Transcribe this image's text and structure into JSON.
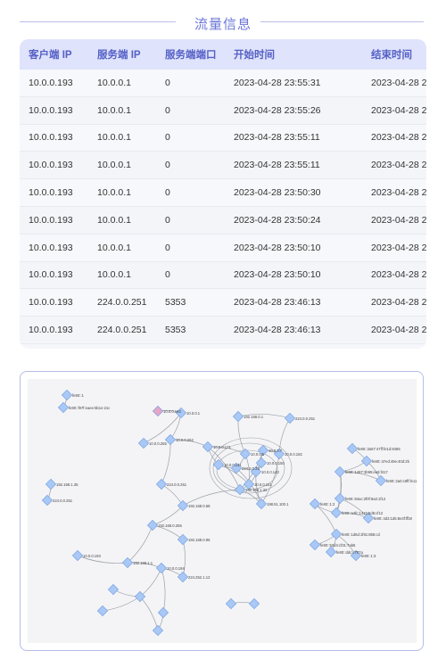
{
  "section": {
    "title": "流量信息"
  },
  "table": {
    "headers": [
      "客户端 IP",
      "服务端 IP",
      "服务端端口",
      "开始时间",
      "结束时间"
    ],
    "rows": [
      [
        "10.0.0.193",
        "10.0.0.1",
        "0",
        "2023-04-28 23:55:31",
        "2023-04-28 2"
      ],
      [
        "10.0.0.193",
        "10.0.0.1",
        "0",
        "2023-04-28 23:55:26",
        "2023-04-28 2"
      ],
      [
        "10.0.0.193",
        "10.0.0.1",
        "0",
        "2023-04-28 23:55:11",
        "2023-04-28 2"
      ],
      [
        "10.0.0.193",
        "10.0.0.1",
        "0",
        "2023-04-28 23:55:11",
        "2023-04-28 2"
      ],
      [
        "10.0.0.193",
        "10.0.0.1",
        "0",
        "2023-04-28 23:50:30",
        "2023-04-28 2"
      ],
      [
        "10.0.0.193",
        "10.0.0.1",
        "0",
        "2023-04-28 23:50:24",
        "2023-04-28 2"
      ],
      [
        "10.0.0.193",
        "10.0.0.1",
        "0",
        "2023-04-28 23:50:10",
        "2023-04-28 2"
      ],
      [
        "10.0.0.193",
        "10.0.0.1",
        "0",
        "2023-04-28 23:50:10",
        "2023-04-28 2"
      ],
      [
        "10.0.0.193",
        "224.0.0.251",
        "5353",
        "2023-04-28 23:46:13",
        "2023-04-28 2"
      ],
      [
        "10.0.0.193",
        "224.0.0.251",
        "5353",
        "2023-04-28 23:46:13",
        "2023-04-28 2"
      ]
    ]
  },
  "graph": {
    "node_color": "#a9c8f5",
    "highlight_node_color": "#e4a6c8",
    "edge_color": "#9aa0a8",
    "label_color": "#444444",
    "labels": [
      {
        "id": "n1",
        "text": "fe80::1"
      },
      {
        "id": "n2",
        "text": "fe80::f97f:eaee:5b1e:21c"
      },
      {
        "id": "n3",
        "text": "10.0.0.193"
      },
      {
        "id": "n4",
        "text": "10.0.0.1"
      },
      {
        "id": "n5",
        "text": "192.168.0.1"
      },
      {
        "id": "n6",
        "text": "224.0.0.251"
      },
      {
        "id": "n7",
        "text": "10.0.0.255"
      },
      {
        "id": "n8",
        "text": "10.0.0.252"
      },
      {
        "id": "n9",
        "text": "10.0.0.171"
      },
      {
        "id": "n10",
        "text": "10.0.0.5"
      },
      {
        "id": "n11",
        "text": "10.0.0.7"
      },
      {
        "id": "n12",
        "text": "10.0.0.182"
      },
      {
        "id": "n13",
        "text": "224.0.0.22"
      },
      {
        "id": "n14",
        "text": "10.0.0.140"
      },
      {
        "id": "n15",
        "text": "10.0.0.150"
      },
      {
        "id": "n16",
        "text": "10.0.0.141"
      },
      {
        "id": "n17",
        "text": "10.0.0.151"
      },
      {
        "id": "n18",
        "text": "224.0.0.251"
      },
      {
        "id": "n19",
        "text": "192.168.1.32"
      },
      {
        "id": "n20",
        "text": "198.51.100.1"
      },
      {
        "id": "n21",
        "text": "192.168.0.68"
      },
      {
        "id": "n22",
        "text": "192.168.1.35"
      },
      {
        "id": "n23",
        "text": "224.0.0.251"
      },
      {
        "id": "n24",
        "text": "fe80::3a57:47ff:fe1d:8485"
      },
      {
        "id": "n25",
        "text": "fe80::47ed:49e:40d:2b"
      },
      {
        "id": "n26",
        "text": "fe80::1487:3b95:ee6:f417"
      },
      {
        "id": "n27",
        "text": "fe80::2a0:c9ff:fe11:a1a2"
      },
      {
        "id": "n28",
        "text": "fe80::84ac:2f0f:9a3:1f12"
      },
      {
        "id": "n29",
        "text": "fe80::a4fc:1415:5d6:cf12"
      },
      {
        "id": "n30",
        "text": "fe80::1:2"
      },
      {
        "id": "n31",
        "text": "fe80::4d3:1d5:8e3f:ffb0"
      },
      {
        "id": "n32",
        "text": "fe80::1d6d:1f91:8b8:cd"
      },
      {
        "id": "n33",
        "text": "fe80::52d4:cf31:7ab6"
      },
      {
        "id": "n34",
        "text": "fe80::ddc:c707a"
      },
      {
        "id": "n35",
        "text": "fe80::1:3"
      },
      {
        "id": "n36",
        "text": "192.168.0.255"
      },
      {
        "id": "n37",
        "text": "192.168.0.95"
      },
      {
        "id": "n38",
        "text": "10.0.0.193"
      },
      {
        "id": "n39",
        "text": "192.168.1.1"
      },
      {
        "id": "n40",
        "text": "224.252.1.12"
      },
      {
        "id": "n41",
        "text": "10.0.0.194"
      }
    ]
  }
}
